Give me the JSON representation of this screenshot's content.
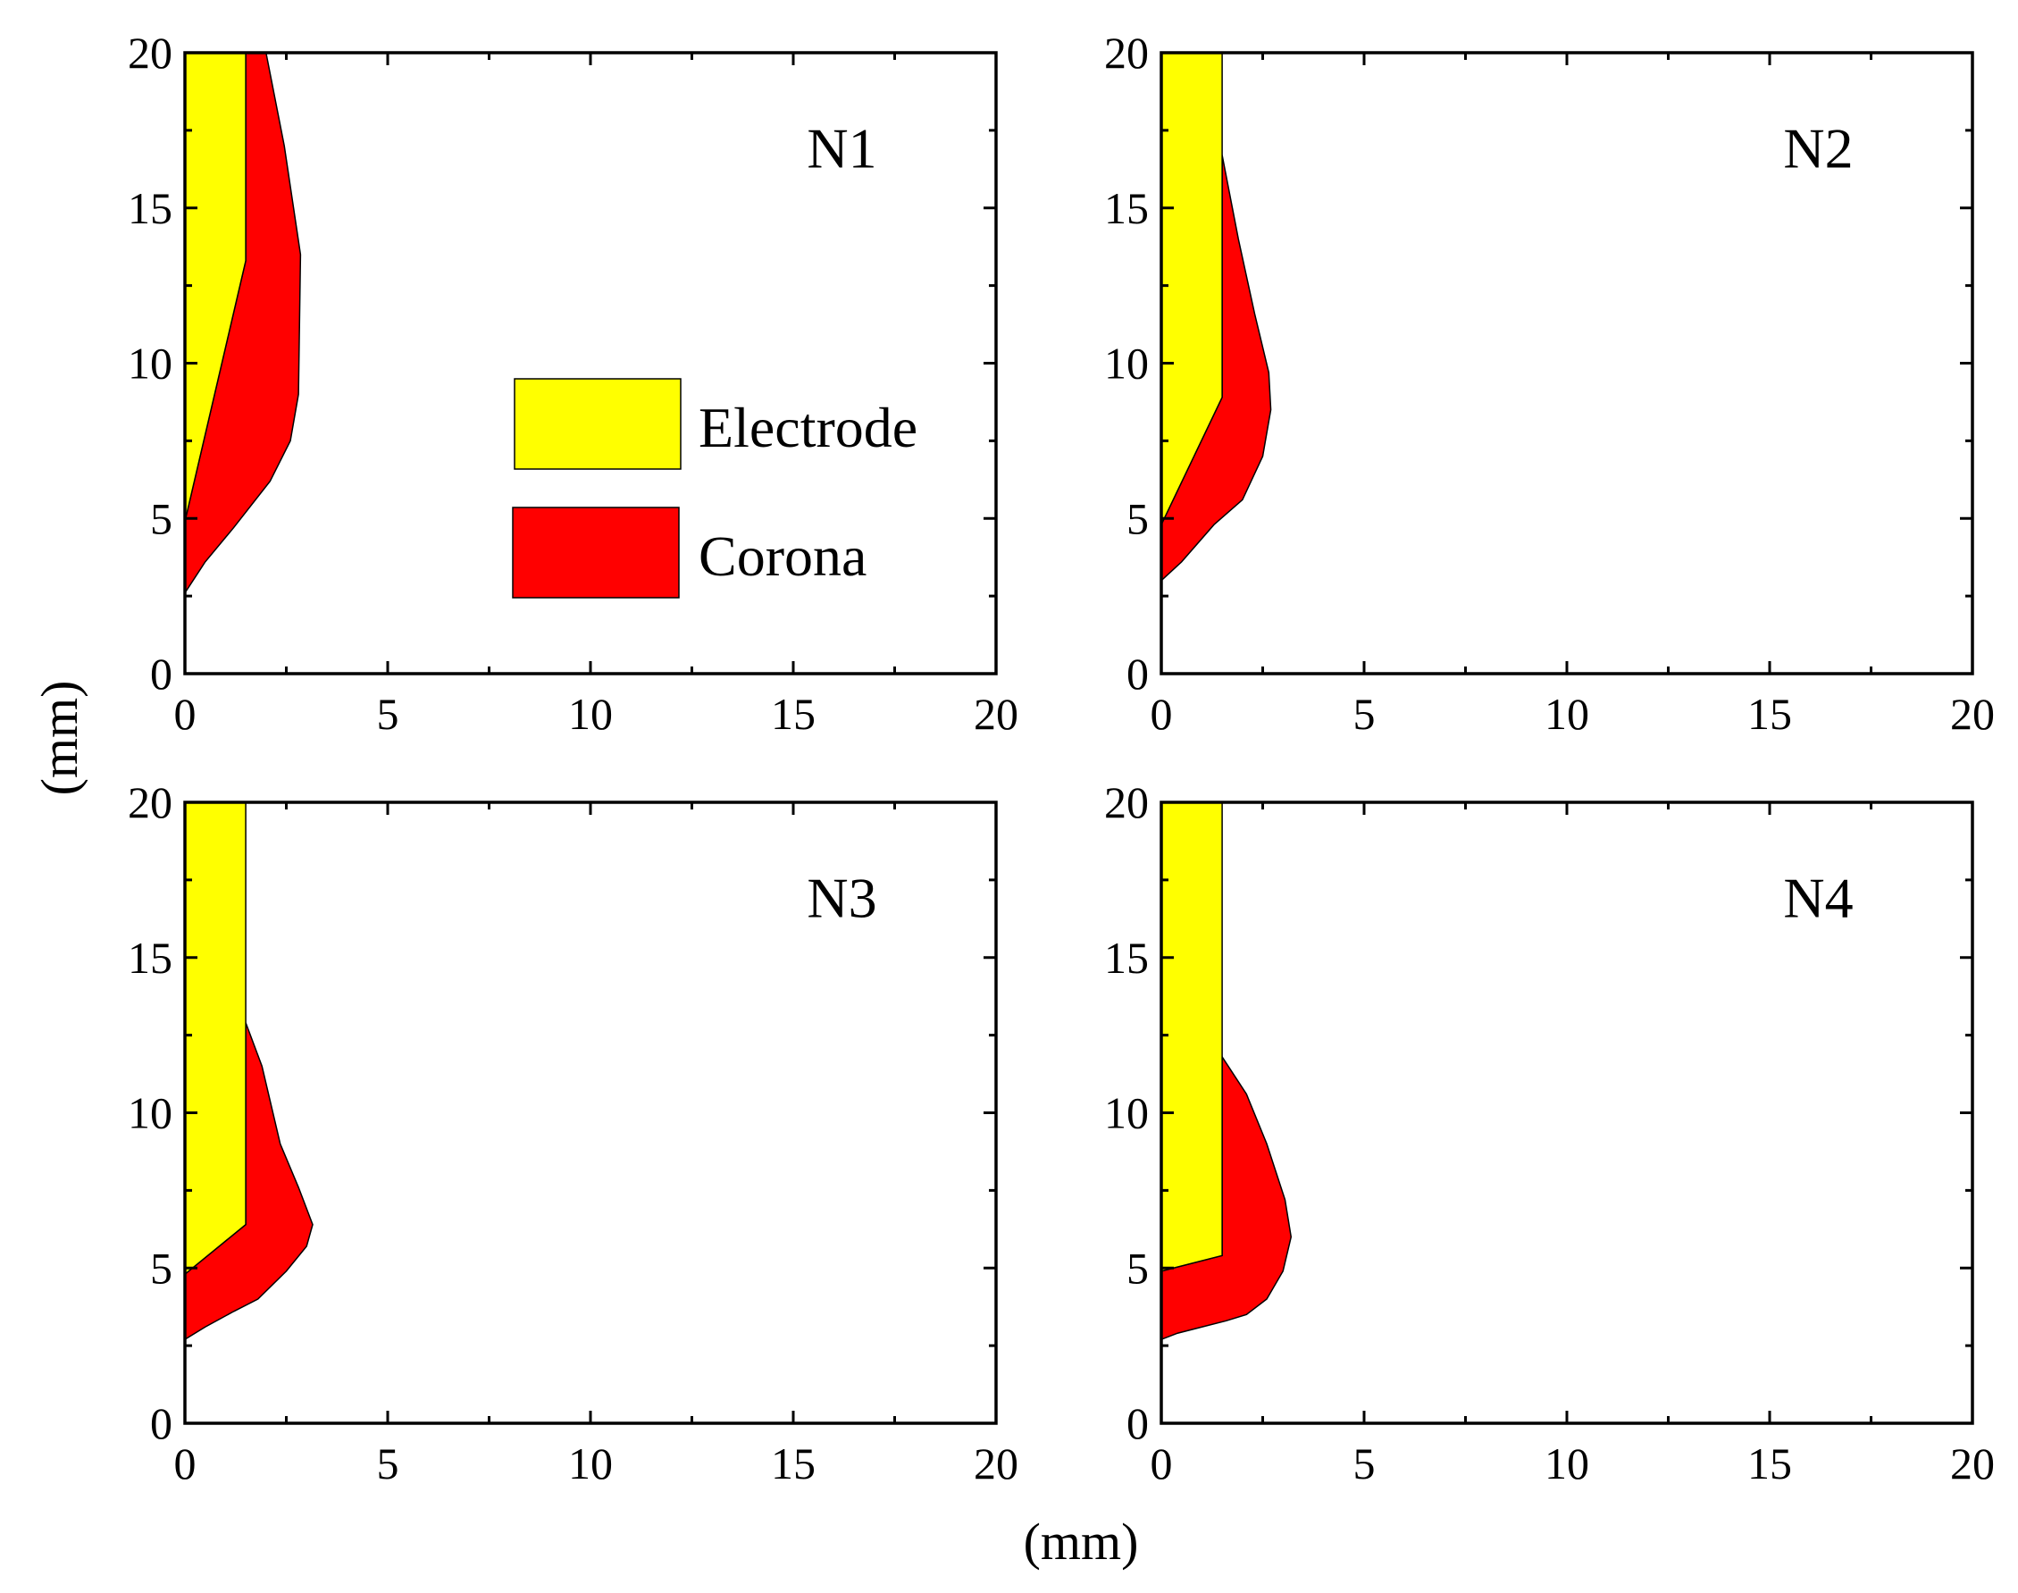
{
  "chart_data": {
    "type": "area",
    "layout": "2x2 grid of panels",
    "xlabel": "(mm)",
    "ylabel": "(mm)",
    "xlim": [
      0,
      20
    ],
    "ylim": [
      0,
      20
    ],
    "major_ticks": [
      0,
      5,
      10,
      15,
      20
    ],
    "tick_labels": [
      "0",
      "5",
      "10",
      "15",
      "20"
    ],
    "colors": {
      "electrode": "#ffff00",
      "corona": "#ff0000"
    },
    "legend": {
      "placement": "inside N1 panel, center",
      "entries": [
        {
          "label": "Electrode",
          "color": "#ffff00"
        },
        {
          "label": "Corona",
          "color": "#ff0000"
        }
      ]
    },
    "panels": [
      {
        "label": "N1",
        "electrode": [
          [
            0,
            20
          ],
          [
            1.5,
            20
          ],
          [
            1.5,
            13.3
          ],
          [
            0,
            4.9
          ]
        ],
        "corona": [
          [
            0,
            2.6
          ],
          [
            0,
            4.9
          ],
          [
            1.5,
            13.3
          ],
          [
            1.5,
            20
          ],
          [
            2.0,
            20
          ],
          [
            2.45,
            17
          ],
          [
            2.85,
            13.5
          ],
          [
            2.8,
            9
          ],
          [
            2.6,
            7.5
          ],
          [
            2.1,
            6.2
          ],
          [
            1.2,
            4.7
          ],
          [
            0.5,
            3.6
          ]
        ]
      },
      {
        "label": "N2",
        "electrode": [
          [
            0,
            20
          ],
          [
            1.5,
            20
          ],
          [
            1.5,
            8.9
          ],
          [
            0,
            4.8
          ]
        ],
        "corona": [
          [
            0,
            3.0
          ],
          [
            0,
            4.8
          ],
          [
            1.5,
            8.9
          ],
          [
            1.5,
            16.7
          ],
          [
            1.9,
            14
          ],
          [
            2.3,
            11.6
          ],
          [
            2.65,
            9.7
          ],
          [
            2.7,
            8.5
          ],
          [
            2.5,
            7
          ],
          [
            2.0,
            5.6
          ],
          [
            1.3,
            4.8
          ],
          [
            0.5,
            3.6
          ]
        ]
      },
      {
        "label": "N3",
        "electrode": [
          [
            0,
            20
          ],
          [
            1.5,
            20
          ],
          [
            1.5,
            6.4
          ],
          [
            0,
            4.8
          ]
        ],
        "corona": [
          [
            0,
            2.7
          ],
          [
            0,
            4.8
          ],
          [
            1.5,
            6.4
          ],
          [
            1.5,
            12.9
          ],
          [
            1.9,
            11.5
          ],
          [
            2.35,
            9
          ],
          [
            2.8,
            7.6
          ],
          [
            3.15,
            6.4
          ],
          [
            3.0,
            5.7
          ],
          [
            2.5,
            4.9
          ],
          [
            1.8,
            4.0
          ],
          [
            1.2,
            3.6
          ],
          [
            0.5,
            3.1
          ]
        ]
      },
      {
        "label": "N4",
        "electrode": [
          [
            0,
            20
          ],
          [
            1.5,
            20
          ],
          [
            1.5,
            5.4
          ],
          [
            0,
            4.9
          ]
        ],
        "corona": [
          [
            0,
            2.7
          ],
          [
            0,
            4.9
          ],
          [
            1.5,
            5.4
          ],
          [
            1.5,
            11.8
          ],
          [
            2.1,
            10.6
          ],
          [
            2.6,
            9
          ],
          [
            3.05,
            7.2
          ],
          [
            3.2,
            6.0
          ],
          [
            3.0,
            4.9
          ],
          [
            2.6,
            4.0
          ],
          [
            2.1,
            3.5
          ],
          [
            1.6,
            3.3
          ],
          [
            1.0,
            3.1
          ],
          [
            0.4,
            2.9
          ]
        ]
      }
    ]
  }
}
